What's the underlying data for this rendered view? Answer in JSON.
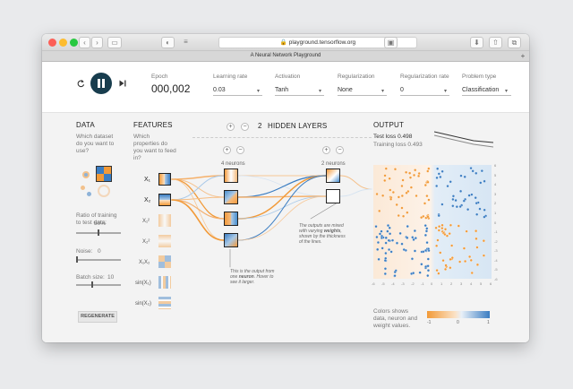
{
  "browser": {
    "url": "playground.tensorflow.org",
    "tab_title": "A Neural Network Playground",
    "new_tab": "+"
  },
  "controls": {
    "epoch_label": "Epoch",
    "epoch_value": "000,002",
    "learning_rate_label": "Learning rate",
    "learning_rate_value": "0.03",
    "activation_label": "Activation",
    "activation_value": "Tanh",
    "regularization_label": "Regularization",
    "regularization_value": "None",
    "regularization_rate_label": "Regularization rate",
    "regularization_rate_value": "0",
    "problem_type_label": "Problem type",
    "problem_type_value": "Classification"
  },
  "data_panel": {
    "title": "DATA",
    "question": "Which dataset do you want to use?",
    "ratio_label": "Ratio of training to test data:",
    "ratio_value": "50%",
    "ratio_fraction": 0.5,
    "noise_label": "Noise:",
    "noise_value": "0",
    "noise_fraction": 0,
    "batch_label": "Batch size:",
    "batch_value": "10",
    "batch_fraction": 0.35,
    "regenerate": "REGENERATE"
  },
  "features_panel": {
    "title": "FEATURES",
    "question": "Which properties do you want to feed in?",
    "labels": [
      "X₁",
      "X₂",
      "X₁²",
      "X₂²",
      "X₁X₂",
      "sin(X₁)",
      "sin(X₂)"
    ]
  },
  "network": {
    "hidden_layers_count": "2",
    "hidden_layers_label": "HIDDEN LAYERS",
    "layer1_label": "4 neurons",
    "layer2_label": "2 neurons",
    "note_neuron_pre": "This is the output from one ",
    "note_neuron_bold": "neuron",
    "note_neuron_post": ". Hover to see it larger.",
    "note_weights_pre": "The outputs are mixed with varying ",
    "note_weights_bold": "weights",
    "note_weights_post": ", shown by the thickness of the lines."
  },
  "output_panel": {
    "title": "OUTPUT",
    "test_loss": "Test loss 0.498",
    "training_loss": "Training loss 0.493",
    "x_ticks": [
      "-6",
      "-5",
      "-4",
      "-3",
      "-2",
      "-1",
      "0",
      "1",
      "2",
      "3",
      "4",
      "5",
      "6"
    ],
    "y_ticks": [
      "6",
      "5",
      "4",
      "3",
      "2",
      "1",
      "0",
      "-1",
      "-2",
      "-3",
      "-4",
      "-5",
      "-6"
    ],
    "legend_text": "Colors shows data, neuron and weight values.",
    "legend_ticks": [
      "-1",
      "0",
      "1"
    ]
  },
  "colors": {
    "blue": "#3b7dc2",
    "orange": "#f29a38",
    "background": "#f7f7f7"
  }
}
